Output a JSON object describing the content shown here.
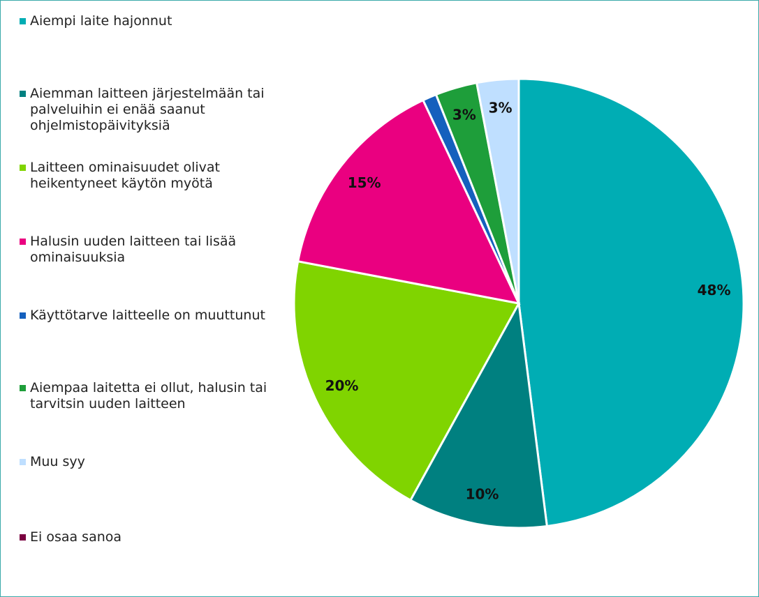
{
  "chart_data": {
    "type": "pie",
    "categories": [
      "Aiempi laite hajonnut",
      "Aiemman laitteen järjestelmään tai palveluihin ei enää saanut ohjelmistopäivityksiä",
      "Laitteen ominaisuudet olivat heikentyneet käytön myötä",
      "Halusin uuden laitteen tai lisää ominaisuuksia",
      "Käyttötarve laitteelle on muuttunut",
      "Aiempaa laitetta ei ollut, halusin tai tarvitsin uuden laitteen",
      "Muu syy",
      "Ei osaa sanoa"
    ],
    "values": [
      48,
      10,
      20,
      15,
      1,
      3,
      3,
      0
    ],
    "value_labels": [
      "48%",
      "10%",
      "20%",
      "15%",
      null,
      "3%",
      "3%",
      null
    ],
    "colors": [
      "#00adb4",
      "#008080",
      "#80d400",
      "#ea0080",
      "#1560bd",
      "#1e9e3a",
      "#bfdfff",
      "#7a0040"
    ],
    "legend": "left"
  }
}
